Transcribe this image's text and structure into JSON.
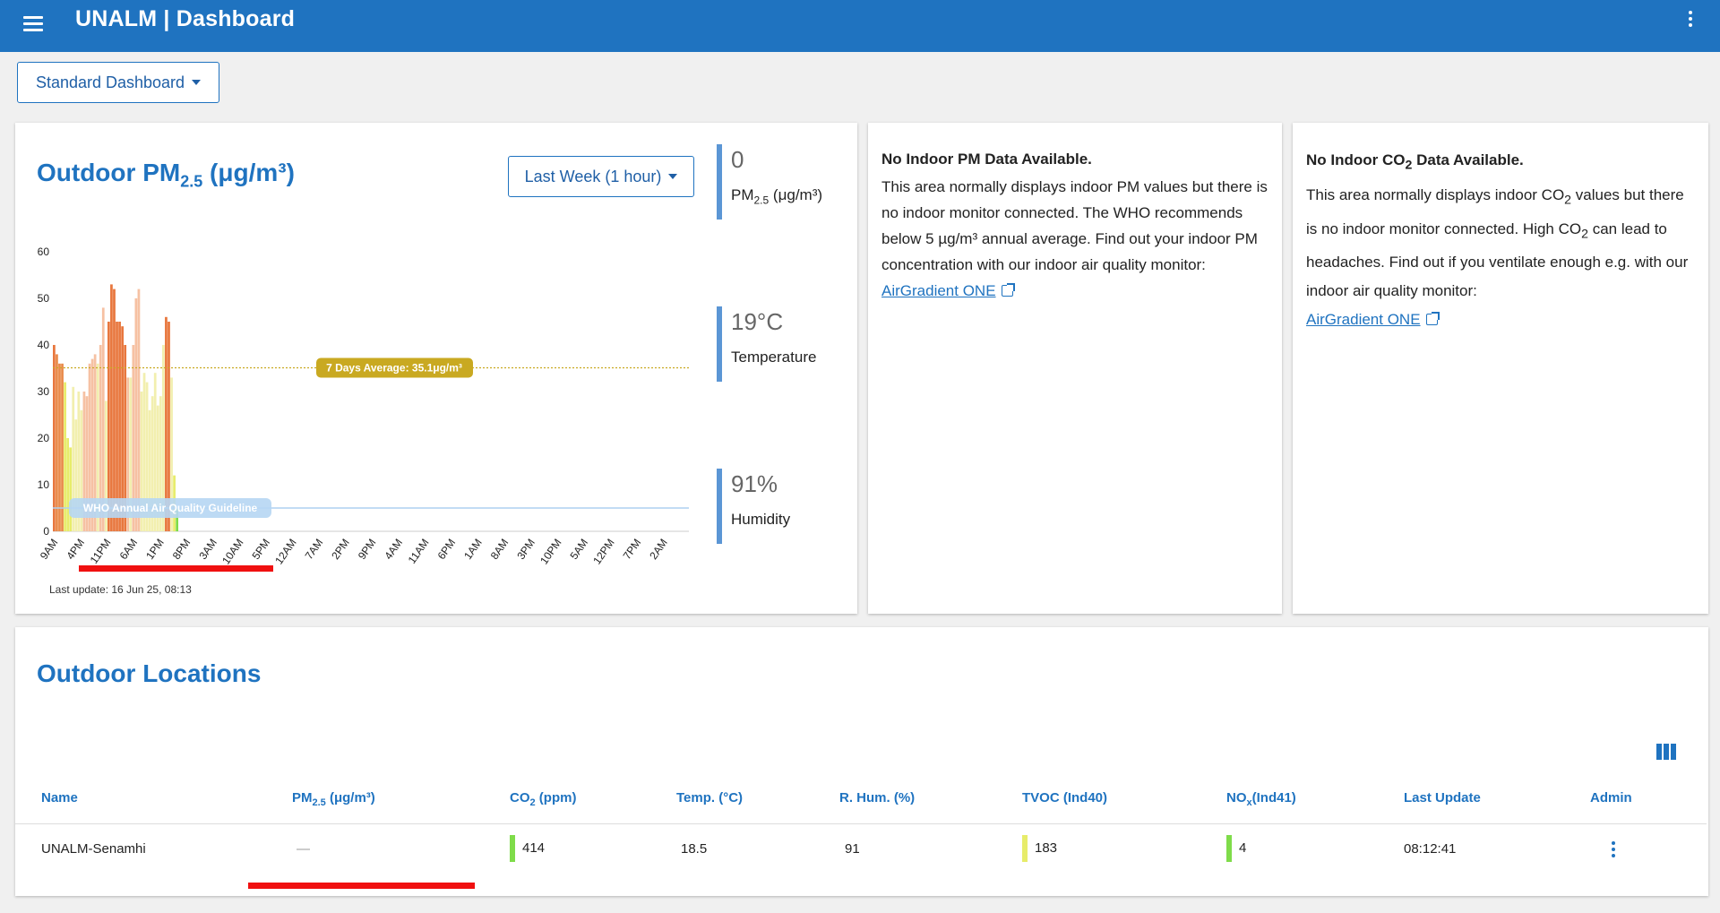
{
  "header": {
    "title": "UNALM | Dashboard",
    "menu_icon": "hamburger-menu-icon",
    "more_icon": "more-vertical-icon",
    "color": "#1f73c0"
  },
  "dashboard_selector": {
    "label": "Standard Dashboard"
  },
  "outdoor_chart": {
    "title_main": "Outdoor PM",
    "title_sub": "2.5",
    "title_unit": "(μg/m³)",
    "range_label": "Last Week (1 hour)",
    "last_update": "Last update: 16 Jun 25, 08:13",
    "average_label": "7 Days Average: 35.1μg/m³",
    "guideline_label": "WHO Annual Air Quality Guideline"
  },
  "chart_data": {
    "type": "bar",
    "ylim": [
      0,
      60
    ],
    "yticks": [
      0,
      10,
      20,
      30,
      40,
      50,
      60
    ],
    "xticks": [
      "9AM",
      "4PM",
      "11PM",
      "6AM",
      "1PM",
      "8PM",
      "3AM",
      "10AM",
      "5PM",
      "12AM",
      "7AM",
      "2PM",
      "9PM",
      "4AM",
      "11AM",
      "6PM",
      "1AM",
      "8AM",
      "3PM",
      "10PM",
      "5AM",
      "12PM",
      "7PM",
      "2AM"
    ],
    "average": 35.1,
    "who_guideline": 5,
    "values": [
      40,
      38,
      36,
      36,
      32,
      20,
      18,
      31,
      24,
      30,
      26,
      30,
      29,
      36,
      37,
      38,
      36,
      40,
      48,
      28,
      45,
      53,
      52,
      45,
      45,
      44,
      40,
      33,
      33,
      40,
      50,
      52,
      30,
      34,
      32,
      26,
      29,
      34,
      27,
      29,
      40,
      46,
      45,
      33,
      12,
      5
    ],
    "colors": [
      "#e8773e",
      "#e98a4a",
      "#e98a4a",
      "#e98a4a",
      "#e7ec6a",
      "#e7ec6a",
      "#e7ec6a",
      "#f2efaf",
      "#f2efaf",
      "#f2efaf",
      "#f2efaf",
      "#f6c1a3",
      "#f6c1a3",
      "#f6c1a3",
      "#f6c1a3",
      "#f6c1a3",
      "#f2efaf",
      "#f6c1a3",
      "#f6c1a3",
      "#f2efaf",
      "#e8773e",
      "#e8773e",
      "#e8773e",
      "#e8773e",
      "#e8773e",
      "#e8773e",
      "#e8773e",
      "#f6c1a3",
      "#f2efaf",
      "#f6c1a3",
      "#f6c1a3",
      "#f6c1a3",
      "#f2efaf",
      "#f2efaf",
      "#f2efaf",
      "#f2efaf",
      "#f2efaf",
      "#f2efaf",
      "#f2efaf",
      "#f2efaf",
      "#f2efaf",
      "#e8773e",
      "#e8773e",
      "#f2efaf",
      "#e7ec6a",
      "#7fdc4a"
    ]
  },
  "stats": [
    {
      "value": "0",
      "label": "PM",
      "label_sub": "2.5",
      "label_tail": " (μg/m³)"
    },
    {
      "value": "19°C",
      "label": "Temperature"
    },
    {
      "value": "91%",
      "label": "Humidity"
    }
  ],
  "indoor_pm": {
    "title": "No Indoor PM Data Available.",
    "body": "This area normally displays indoor PM values but there is no indoor monitor connected. The WHO recommends below 5 µg/m³ annual average. Find out your indoor PM concentration with our indoor air quality monitor: ",
    "link": "AirGradient ONE"
  },
  "indoor_co2": {
    "title_pre": "No Indoor CO",
    "title_sub": "2",
    "title_post": " Data Available.",
    "body_a": "This area normally displays indoor CO",
    "body_b": " values but there is no indoor monitor connected. High CO",
    "body_c": " can lead to headaches. Find out if you ventilate enough e.g. with our indoor air quality monitor:",
    "sub": "2",
    "link": "AirGradient ONE"
  },
  "locations": {
    "title": "Outdoor Locations",
    "columns_icon": "view-columns-icon",
    "headers": {
      "name": "Name",
      "pm": "PM",
      "pm_sub": "2.5",
      "pm_unit": " (μg/m³)",
      "co2": "CO",
      "co2_sub": "2",
      "co2_unit": " (ppm)",
      "temp": "Temp. (°C)",
      "rhum": "R. Hum. (%)",
      "tvoc": "TVOC (Ind40)",
      "nox": "NO",
      "nox_sub": "x",
      "nox_unit": "(Ind41)",
      "last_update": "Last Update",
      "admin": "Admin"
    },
    "rows": [
      {
        "name": "UNALM-Senamhi",
        "pm": "—",
        "co2": "414",
        "temp": "18.5",
        "rhum": "91",
        "tvoc": "183",
        "nox": "4",
        "last_update": "08:12:41"
      }
    ],
    "indicator_colors": {
      "co2": "#7fdc4a",
      "tvoc": "#e7ec6a",
      "nox": "#7fdc4a"
    }
  }
}
